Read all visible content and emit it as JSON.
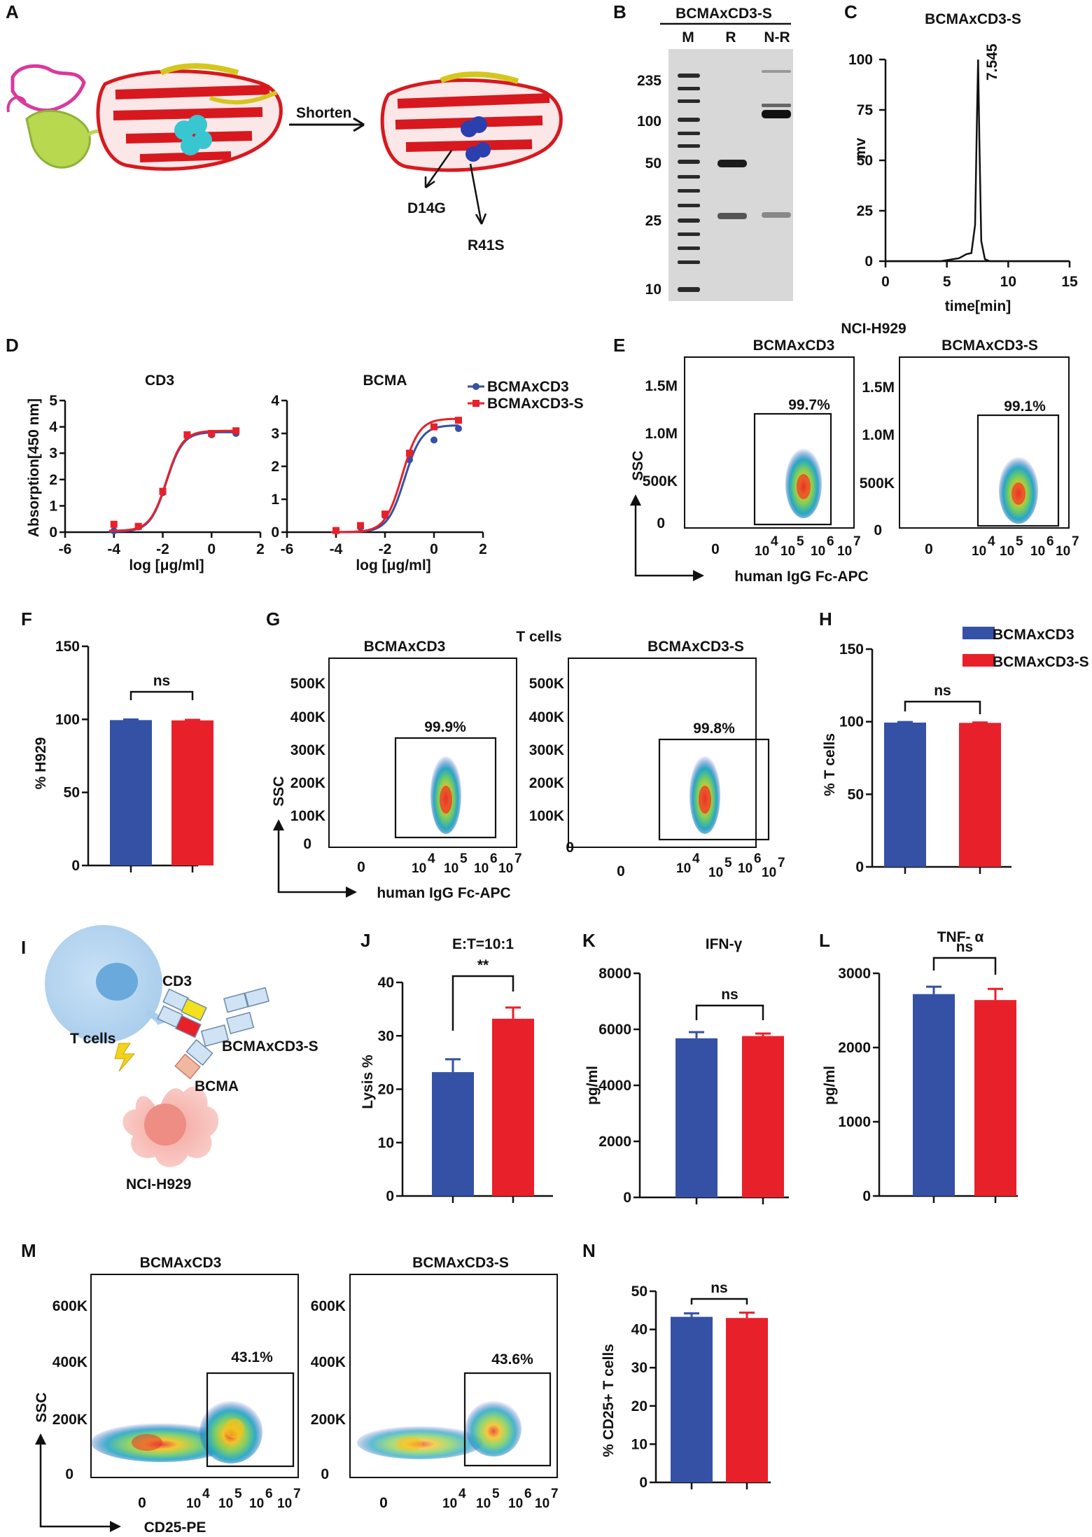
{
  "colors": {
    "blue": "#3451a6",
    "red": "#e8202a",
    "ink": "#111111"
  },
  "panelA": {
    "label": "A",
    "arrow_label": "Shorten",
    "mutations": [
      "D14G",
      "R41S"
    ]
  },
  "panelB": {
    "label": "B",
    "title": "BCMAxCD3-S",
    "lanes": [
      "M",
      "R",
      "N-R"
    ],
    "markers": [
      "235",
      "100",
      "50",
      "25",
      "10"
    ]
  },
  "panelC": {
    "label": "C",
    "peak_label": "7.545",
    "chart_data": {
      "type": "line",
      "title": "BCMAxCD3-S",
      "xlabel": "time[min]",
      "ylabel": "mv",
      "xlim": [
        0,
        15
      ],
      "ylim": [
        0,
        100
      ],
      "xticks": [
        "0",
        "5",
        "10",
        "15"
      ],
      "yticks": [
        "0",
        "25",
        "50",
        "75",
        "100"
      ],
      "peak": {
        "x": 7.545,
        "y": 100
      },
      "x": [
        0,
        4.5,
        6,
        6.6,
        7.0,
        7.3,
        7.45,
        7.545,
        7.65,
        7.8,
        8.1,
        8.5,
        15
      ],
      "y": [
        0,
        0,
        1.5,
        3.5,
        4,
        18,
        70,
        100,
        60,
        10,
        1,
        0,
        0
      ]
    }
  },
  "panelD": {
    "label": "D",
    "legend": [
      "BCMAxCD3",
      "BCMAxCD3-S"
    ],
    "chart_data": [
      {
        "type": "line",
        "title": "CD3",
        "xlabel": "log [μg/ml]",
        "ylabel": "Absorption[450 nm]",
        "xlim": [
          -6,
          2
        ],
        "ylim": [
          0,
          5
        ],
        "xticks": [
          "-6",
          "-4",
          "-2",
          "0",
          "2"
        ],
        "yticks": [
          "0",
          "1",
          "2",
          "3",
          "4",
          "5"
        ],
        "series": [
          {
            "name": "BCMAxCD3",
            "x": [
              -4,
              -3,
              -2,
              -1,
              0,
              1
            ],
            "y": [
              0.05,
              0.2,
              1.5,
              3.65,
              3.7,
              3.75
            ],
            "fit": {
              "bottom": 0.02,
              "top": 3.8,
              "ec50": -1.85,
              "hill": 1.3
            }
          },
          {
            "name": "BCMAxCD3-S",
            "x": [
              -4,
              -3,
              -2,
              -1,
              0,
              1
            ],
            "y": [
              0.3,
              0.22,
              1.55,
              3.7,
              3.75,
              3.85
            ],
            "fit": {
              "bottom": 0.05,
              "top": 3.85,
              "ec50": -1.85,
              "hill": 1.3
            }
          }
        ]
      },
      {
        "type": "line",
        "title": "BCMA",
        "xlabel": "log [μg/ml]",
        "ylabel": "",
        "xlim": [
          -6,
          2
        ],
        "ylim": [
          0,
          4
        ],
        "xticks": [
          "-6",
          "-4",
          "-2",
          "0",
          "2"
        ],
        "yticks": [
          "0",
          "1",
          "2",
          "3",
          "4"
        ],
        "series": [
          {
            "name": "BCMAxCD3",
            "x": [
              -4,
              -3,
              -2,
              -1,
              0,
              1
            ],
            "y": [
              0.05,
              0.15,
              0.5,
              2.2,
              2.8,
              3.15
            ],
            "fit": {
              "bottom": 0.0,
              "top": 3.25,
              "ec50": -1.2,
              "hill": 1.25
            }
          },
          {
            "name": "BCMAxCD3-S",
            "x": [
              -4,
              -3,
              -2,
              -1,
              0,
              1
            ],
            "y": [
              0.05,
              0.2,
              0.55,
              2.4,
              3.2,
              3.4
            ],
            "fit": {
              "bottom": 0.0,
              "top": 3.45,
              "ec50": -1.3,
              "hill": 1.25
            }
          }
        ]
      }
    ]
  },
  "panelE": {
    "label": "E",
    "cell_line": "NCI-H929",
    "plot_titles": [
      "BCMAxCD3",
      "BCMAxCD3-S"
    ],
    "percentages": [
      "99.7%",
      "99.1%"
    ],
    "y_ticks": [
      "1.5M",
      "1.0M",
      "500K",
      "0"
    ],
    "x_ticks": [
      "0",
      "10",
      "10",
      "10",
      "10"
    ],
    "x_exponents": [
      "4",
      "5",
      "6",
      "7"
    ],
    "y_axis_label": "SSC",
    "x_axis_label": "human IgG Fc-APC"
  },
  "panelF": {
    "label": "F",
    "significance": "ns",
    "chart_data": {
      "type": "bar",
      "categories": [
        "BCMAxCD3",
        "BCMAxCD3-S"
      ],
      "values": [
        99.5,
        99.3
      ],
      "errors": [
        0.4,
        0.4
      ],
      "ylabel": "% H929",
      "ylim": [
        0,
        150
      ],
      "yticks": [
        "0",
        "50",
        "100",
        "150"
      ]
    }
  },
  "panelG": {
    "label": "G",
    "cell_type": "T cells",
    "plot_titles": [
      "BCMAxCD3",
      "BCMAxCD3-S"
    ],
    "percentages": [
      "99.9%",
      "99.8%"
    ],
    "y_ticks": [
      "500K",
      "400K",
      "300K",
      "200K",
      "100K",
      "0"
    ],
    "x_ticks": [
      "0",
      "10",
      "10",
      "10",
      "10"
    ],
    "x_exponents": [
      "4",
      "5",
      "6",
      "7"
    ],
    "y_axis_label": "SSC",
    "x_axis_label": "human IgG Fc-APC"
  },
  "panelH": {
    "label": "H",
    "significance": "ns",
    "legend": [
      "BCMAxCD3",
      "BCMAxCD3-S"
    ],
    "chart_data": {
      "type": "bar",
      "categories": [
        "BCMAxCD3",
        "BCMAxCD3-S"
      ],
      "values": [
        99.4,
        99.2
      ],
      "errors": [
        0.4,
        0.3
      ],
      "ylabel": "% T cells",
      "ylim": [
        0,
        150
      ],
      "yticks": [
        "0",
        "50",
        "100",
        "150"
      ]
    }
  },
  "panelI": {
    "label": "I",
    "labels": [
      "CD3",
      "T cells",
      "BCMAxCD3-S",
      "BCMA",
      "NCI-H929"
    ]
  },
  "panelJ": {
    "label": "J",
    "significance": "**",
    "chart_data": {
      "type": "bar",
      "title": "E:T=10:1",
      "categories": [
        "BCMAxCD3",
        "BCMAxCD3-S"
      ],
      "values": [
        23.2,
        33.2
      ],
      "errors": [
        2.4,
        2.1
      ],
      "ylabel": "Lysis %",
      "ylim": [
        0,
        40
      ],
      "yticks": [
        "0",
        "10",
        "20",
        "30",
        "40"
      ]
    }
  },
  "panelK": {
    "label": "K",
    "significance": "ns",
    "chart_data": {
      "type": "bar",
      "title": "IFN-γ",
      "categories": [
        "BCMAxCD3",
        "BCMAxCD3-S"
      ],
      "values": [
        5680,
        5760
      ],
      "errors": [
        220,
        90
      ],
      "ylabel": "pg/ml",
      "ylim": [
        0,
        8000
      ],
      "yticks": [
        "0",
        "2000",
        "4000",
        "6000",
        "8000"
      ]
    }
  },
  "panelL": {
    "label": "L",
    "significance": "ns",
    "chart_data": {
      "type": "bar",
      "title": "TNF- α",
      "categories": [
        "BCMAxCD3",
        "BCMAxCD3-S"
      ],
      "values": [
        2720,
        2640
      ],
      "errors": [
        100,
        150
      ],
      "ylabel": "pg/ml",
      "ylim": [
        0,
        3000
      ],
      "yticks": [
        "0",
        "1000",
        "2000",
        "3000"
      ]
    }
  },
  "panelM": {
    "label": "M",
    "plot_titles": [
      "BCMAxCD3",
      "BCMAxCD3-S"
    ],
    "percentages": [
      "43.1%",
      "43.6%"
    ],
    "y_ticks": [
      "600K",
      "400K",
      "200K",
      "0"
    ],
    "x_ticks": [
      "0",
      "10",
      "10",
      "10",
      "10"
    ],
    "x_exponents": [
      "4",
      "5",
      "6",
      "7"
    ],
    "y_axis_label": "SSC",
    "x_axis_label": "CD25-PE"
  },
  "panelN": {
    "label": "N",
    "significance": "ns",
    "chart_data": {
      "type": "bar",
      "categories": [
        "BCMAxCD3",
        "BCMAxCD3-S"
      ],
      "values": [
        43.3,
        43.0
      ],
      "errors": [
        0.9,
        1.4
      ],
      "ylabel": "% CD25+ T cells",
      "ylim": [
        0,
        50
      ],
      "yticks": [
        "0",
        "10",
        "20",
        "30",
        "40",
        "50"
      ]
    }
  }
}
